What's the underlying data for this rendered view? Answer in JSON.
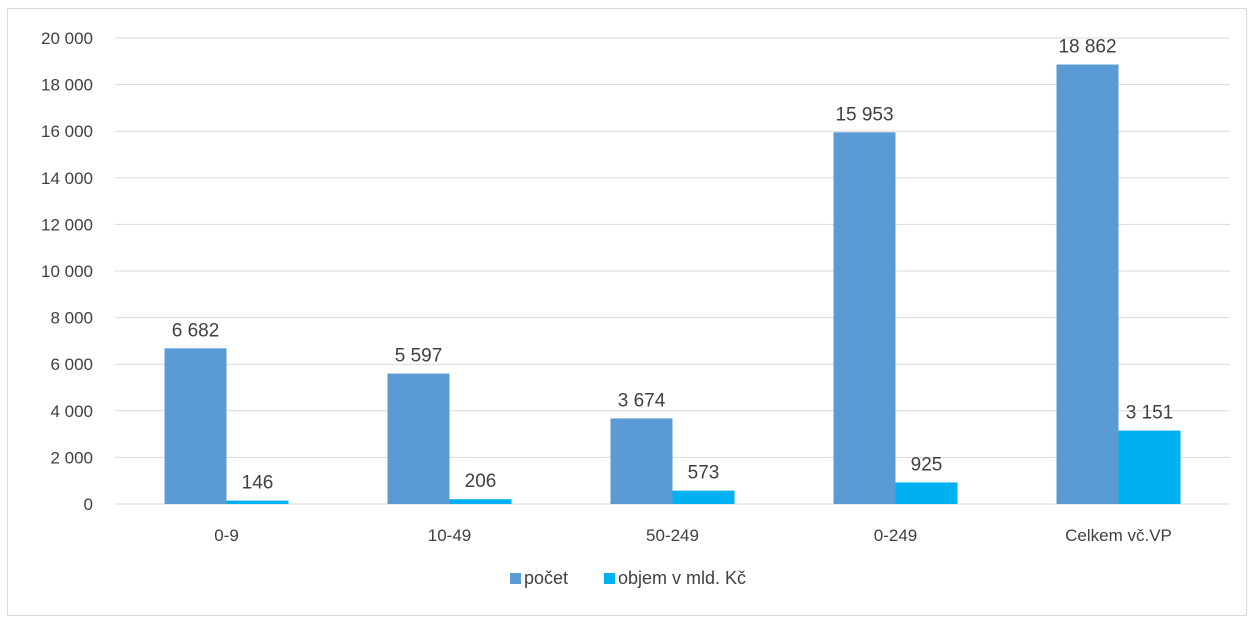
{
  "chart_data": {
    "type": "bar",
    "categories": [
      "0-9",
      "10-49",
      "50-249",
      "0-249",
      "Celkem vč.VP"
    ],
    "series": [
      {
        "name": "počet",
        "values": [
          6682,
          5597,
          3674,
          15953,
          18862
        ],
        "labels": [
          "6 682",
          "5 597",
          "3 674",
          "15 953",
          "18 862"
        ],
        "color": "#5b9bd5"
      },
      {
        "name": "objem v mld. Kč",
        "values": [
          146,
          206,
          573,
          925,
          3151
        ],
        "labels": [
          "146",
          "206",
          "573",
          "925",
          "3 151"
        ],
        "color": "#00b0f0"
      }
    ],
    "ylim": [
      0,
      20000
    ],
    "yticks": [
      0,
      2000,
      4000,
      6000,
      8000,
      10000,
      12000,
      14000,
      16000,
      18000,
      20000
    ],
    "ytick_labels": [
      "0",
      "2 000",
      "4 000",
      "6 000",
      "8 000",
      "10 000",
      "12 000",
      "14 000",
      "16 000",
      "18 000",
      "20 000"
    ],
    "grid": true,
    "legend": "bottom",
    "gridline_color": "#d9d9d9"
  }
}
